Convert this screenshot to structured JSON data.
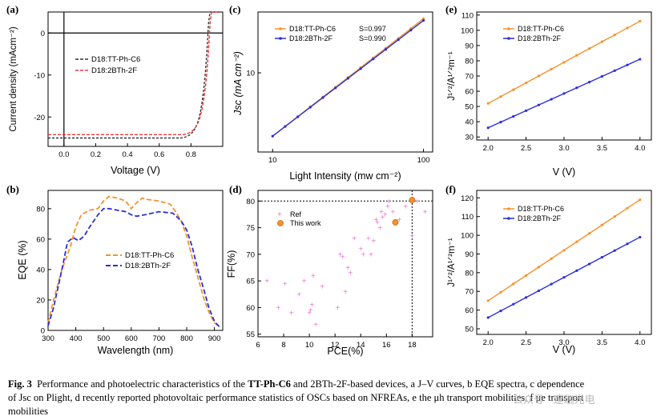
{
  "figure_caption": {
    "fig_label": "Fig. 3",
    "text_a": "Performance and photoelectric characteristics of the ",
    "bold_name": "TT-Ph-C6",
    "text_b": " and 2BTh-2F-based devices, ",
    "seg_a": "a J–V curves, b EQE spectra, c dependence",
    "line2": "of Jsc on Plight, d recently reported photovoltaic performance statistics of OSCs based on NFREAs, e the μh transport mobilities, f μe transport",
    "line3": "mobilities"
  },
  "watermark": "公众号 · 邃瑞光电",
  "colors": {
    "orange": "#f5922b",
    "blue": "#2b2fd9",
    "red": "#e8383d",
    "dark": "#333333",
    "pink": "#e879d9"
  },
  "chart_data": [
    {
      "panel": "(a)",
      "type": "line",
      "xlabel": "Voltage (V)",
      "ylabel": "Current density (mAcm⁻²)",
      "xlim": [
        -0.1,
        1.0
      ],
      "ylim": [
        -27,
        5
      ],
      "xticks": [
        "0.0",
        "0.2",
        "0.4",
        "0.6",
        "0.8"
      ],
      "yticks": [
        "0",
        "-10",
        "-20"
      ],
      "series": [
        {
          "name": "D18:TT-Ph-C6",
          "jsc": -25.0,
          "voc": 0.905
        },
        {
          "name": "D18:2BTh-2F",
          "jsc": -24.2,
          "voc": 0.915
        }
      ]
    },
    {
      "panel": "(b)",
      "type": "line",
      "xlabel": "Wavelength (nm)",
      "ylabel": "EQE (%)",
      "xlim": [
        300,
        930
      ],
      "ylim": [
        0,
        92
      ],
      "xticks": [
        "300",
        "400",
        "500",
        "600",
        "700",
        "800",
        "900"
      ],
      "yticks": [
        "0",
        "20",
        "40",
        "60",
        "80"
      ],
      "series": [
        {
          "name": "D18:TT-Ph-C6",
          "x": [
            300,
            320,
            350,
            380,
            400,
            420,
            450,
            480,
            500,
            520,
            550,
            580,
            600,
            620,
            640,
            660,
            700,
            740,
            760,
            780,
            800,
            820,
            840,
            860,
            880,
            900,
            920
          ],
          "y": [
            5,
            20,
            40,
            55,
            68,
            76,
            79,
            80,
            85,
            88,
            87,
            85,
            80,
            84,
            87,
            86,
            85,
            83,
            78,
            72,
            62,
            48,
            35,
            22,
            12,
            5,
            2
          ]
        },
        {
          "name": "D18:2BTh-2F",
          "x": [
            300,
            320,
            350,
            370,
            390,
            410,
            430,
            450,
            480,
            500,
            520,
            550,
            580,
            600,
            620,
            650,
            700,
            750,
            780,
            800,
            820,
            840,
            860,
            880,
            900,
            920
          ],
          "y": [
            3,
            15,
            40,
            58,
            61,
            59,
            62,
            68,
            76,
            80,
            80,
            79,
            78,
            76,
            75,
            76,
            78,
            77,
            72,
            66,
            55,
            40,
            28,
            15,
            6,
            2
          ]
        }
      ]
    },
    {
      "panel": "(c)",
      "type": "line",
      "xlabel": "Light Intensity (mw cm⁻²)",
      "ylabel": "Jsc (mA cm⁻²)",
      "xlim": [
        8,
        115
      ],
      "ylim": [
        2.5,
        29
      ],
      "xscale": "log",
      "yscale": "log",
      "xticks": [
        "10",
        "100"
      ],
      "yticks": [
        "10"
      ],
      "series": [
        {
          "name": "D18:TT-Ph-C6",
          "S": "S=0.997",
          "x": [
            10,
            100
          ],
          "y": [
            3.3,
            25.8
          ]
        },
        {
          "name": "D18:2BTh-2F",
          "S": "S=0.990",
          "x": [
            10,
            100
          ],
          "y": [
            3.3,
            25.0
          ]
        }
      ]
    },
    {
      "panel": "(d)",
      "type": "scatter",
      "xlabel": "PCE(%)",
      "ylabel": "FF(%)",
      "xlim": [
        6,
        19.6
      ],
      "ylim": [
        54.5,
        82
      ],
      "refline_x": 18,
      "refline_y": 80,
      "xticks": [
        "6",
        "8",
        "10",
        "12",
        "14",
        "16",
        "18"
      ],
      "yticks": [
        "55",
        "60",
        "65",
        "70",
        "75",
        "80"
      ],
      "series": [
        {
          "name": "Ref",
          "x": [
            6.7,
            7.6,
            8.1,
            8.6,
            9.2,
            9.6,
            10.0,
            10.2,
            10.3,
            10.5,
            10.1,
            11.0,
            12.2,
            12.4,
            12.6,
            13.0,
            13.5,
            14.0,
            14.2,
            14.6,
            15.0,
            15.3,
            15.5,
            15.7,
            15.9,
            16.1,
            15.2,
            16.5,
            17.0,
            18.0,
            19.0,
            12.8,
            13.2,
            14.8,
            15.6,
            16.2,
            17.5,
            18.4
          ],
          "y": [
            65,
            60,
            64.5,
            59,
            62.5,
            65,
            59,
            60.5,
            66,
            56.8,
            59.5,
            64,
            60,
            70,
            69.5,
            67.5,
            73,
            71,
            70,
            73,
            72.5,
            76,
            75,
            77,
            77.5,
            79,
            76.5,
            78,
            76.5,
            73.5,
            78,
            63,
            66.5,
            70,
            78,
            80,
            79,
            80
          ]
        },
        {
          "name": "This work",
          "x": [
            16.7,
            18.0
          ],
          "y": [
            76,
            80.2
          ]
        }
      ]
    },
    {
      "panel": "(e)",
      "type": "line",
      "xlabel": "V (V)",
      "ylabel": "J¹ᐟ²/A¹ᐟ²m⁻¹",
      "xlim": [
        1.85,
        4.15
      ],
      "ylim": [
        28,
        112
      ],
      "xticks": [
        "2.0",
        "2.5",
        "3.0",
        "3.5",
        "4.0"
      ],
      "yticks": [
        "30",
        "40",
        "50",
        "60",
        "70",
        "80",
        "90",
        "100",
        "110"
      ],
      "series": [
        {
          "name": "D18:TT-Ph-C6",
          "x": [
            2.0,
            4.0
          ],
          "y": [
            52,
            106
          ]
        },
        {
          "name": "D18:2BTh-2F",
          "x": [
            2.0,
            4.0
          ],
          "y": [
            36,
            81
          ]
        }
      ]
    },
    {
      "panel": "(f)",
      "type": "line",
      "xlabel": "V (V)",
      "ylabel": "J¹ᐟ²/A¹ᐟ²m⁻¹",
      "xlim": [
        1.85,
        4.15
      ],
      "ylim": [
        47,
        124
      ],
      "xticks": [
        "2.0",
        "2.5",
        "3.0",
        "3.5",
        "4.0"
      ],
      "yticks": [
        "50",
        "60",
        "70",
        "80",
        "90",
        "100",
        "110",
        "120"
      ],
      "series": [
        {
          "name": "D18:TT-Ph-C6",
          "x": [
            2.0,
            4.0
          ],
          "y": [
            65,
            119
          ]
        },
        {
          "name": "D18:2BTh-2F",
          "x": [
            2.0,
            4.0
          ],
          "y": [
            56,
            99
          ]
        }
      ]
    }
  ]
}
